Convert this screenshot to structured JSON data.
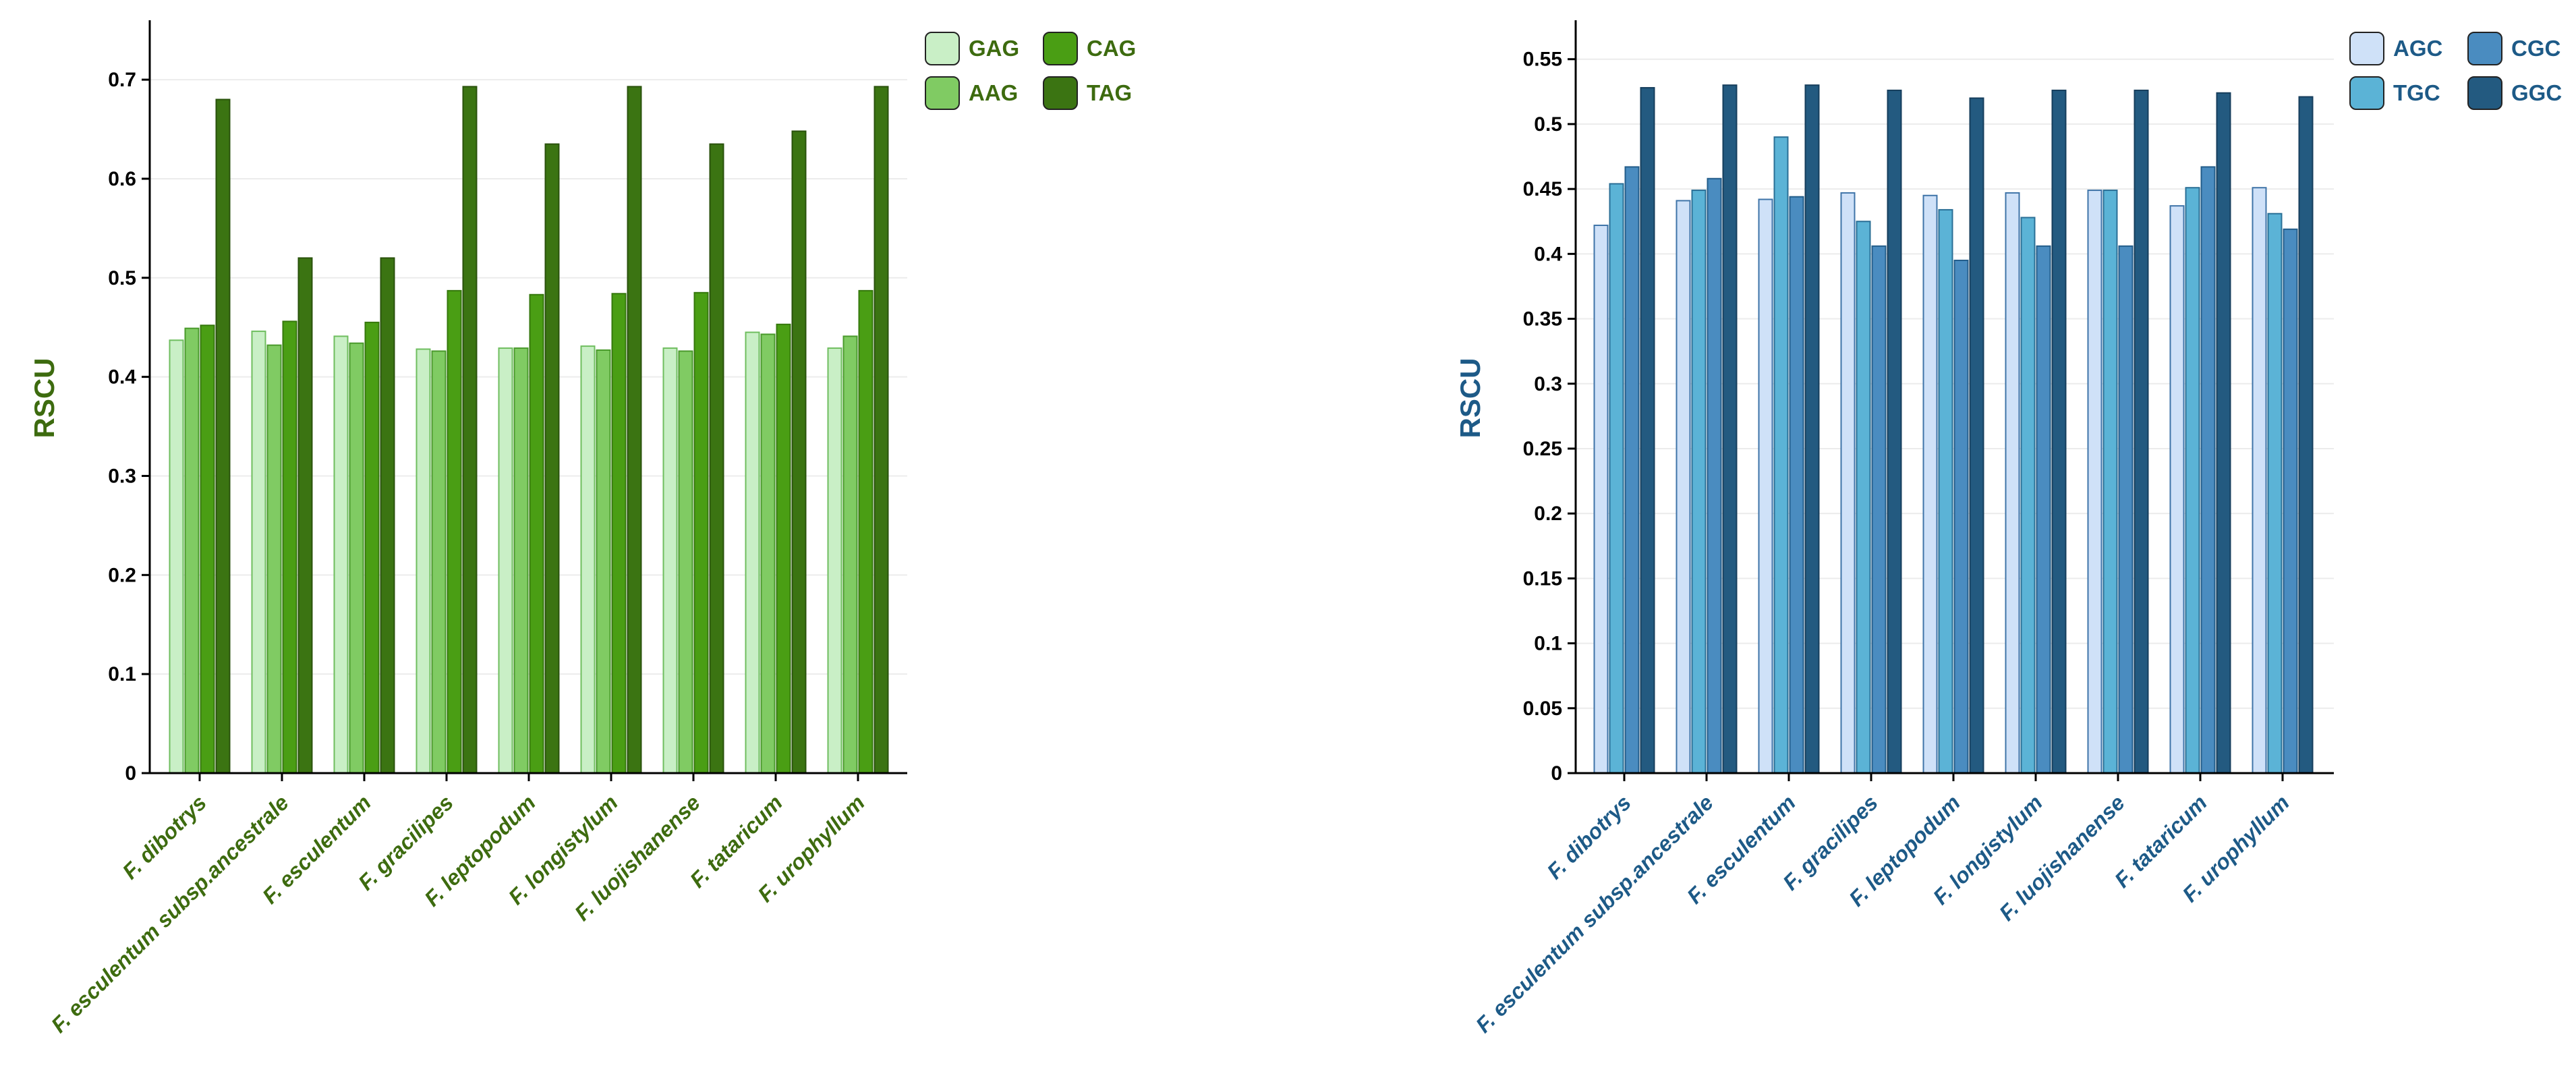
{
  "chart_data": [
    {
      "type": "bar",
      "ylabel": "RSCU",
      "ylim": [
        0,
        0.76
      ],
      "yticks": [
        0,
        0.1,
        0.2,
        0.3,
        0.4,
        0.5,
        0.6,
        0.7
      ],
      "ytick_labels": [
        "0",
        "0.1",
        "0.2",
        "0.3",
        "0.4",
        "0.5",
        "0.6",
        "0.7"
      ],
      "grid": true,
      "legend_position": "top-right",
      "label_color": "#3d6b0f",
      "categories": [
        "F. dibotrys",
        "F. esculentum subsp.ancestrale",
        "F. esculentum",
        "F. gracilipes",
        "F. leptopodum",
        "F. longistylum",
        "F. luojishanense",
        "F. tataricum",
        "F. urophyllum"
      ],
      "series": [
        {
          "name": "GAG",
          "color": "#c9efc6",
          "stroke": "#6fbe5f",
          "values": [
            0.437,
            0.446,
            0.441,
            0.428,
            0.429,
            0.431,
            0.429,
            0.445,
            0.429
          ]
        },
        {
          "name": "AAG",
          "color": "#80cb63",
          "stroke": "#4a9a2c",
          "values": [
            0.449,
            0.432,
            0.434,
            0.426,
            0.429,
            0.427,
            0.426,
            0.443,
            0.441
          ]
        },
        {
          "name": "CAG",
          "color": "#4a9e14",
          "stroke": "#35780c",
          "values": [
            0.452,
            0.456,
            0.455,
            0.487,
            0.483,
            0.484,
            0.485,
            0.453,
            0.487
          ]
        },
        {
          "name": "TAG",
          "color": "#3b7412",
          "stroke": "#2a520c",
          "values": [
            0.68,
            0.52,
            0.52,
            0.693,
            0.635,
            0.693,
            0.635,
            0.648,
            0.693
          ]
        }
      ]
    },
    {
      "type": "bar",
      "ylabel": "RSCU",
      "ylim": [
        0,
        0.58
      ],
      "yticks": [
        0,
        0.05,
        0.1,
        0.15,
        0.2,
        0.25,
        0.3,
        0.35,
        0.4,
        0.45,
        0.5,
        0.55
      ],
      "ytick_labels": [
        "0",
        "0.05",
        "0.1",
        "0.15",
        "0.2",
        "0.25",
        "0.3",
        "0.35",
        "0.4",
        "0.45",
        "0.5",
        "0.55"
      ],
      "grid": true,
      "legend_position": "top-right",
      "label_color": "#1d5a87",
      "categories": [
        "F. dibotrys",
        "F. esculentum subsp.ancestrale",
        "F. esculentum",
        "F. gracilipes",
        "F. leptopodum",
        "F. longistylum",
        "F. luojishanense",
        "F. tataricum",
        "F. urophyllum"
      ],
      "series": [
        {
          "name": "AGC",
          "color": "#cfe1f8",
          "stroke": "#3f74a8",
          "values": [
            0.422,
            0.441,
            0.442,
            0.447,
            0.445,
            0.447,
            0.449,
            0.437,
            0.451
          ]
        },
        {
          "name": "TGC",
          "color": "#5bb3d6",
          "stroke": "#2a6f96",
          "values": [
            0.454,
            0.449,
            0.49,
            0.425,
            0.434,
            0.428,
            0.449,
            0.451,
            0.431
          ]
        },
        {
          "name": "CGC",
          "color": "#4a8cc0",
          "stroke": "#235d8a",
          "values": [
            0.467,
            0.458,
            0.444,
            0.406,
            0.395,
            0.406,
            0.406,
            0.467,
            0.419
          ]
        },
        {
          "name": "GGC",
          "color": "#235a80",
          "stroke": "#163e5c",
          "values": [
            0.528,
            0.53,
            0.53,
            0.526,
            0.52,
            0.526,
            0.526,
            0.524,
            0.521
          ]
        }
      ]
    }
  ]
}
